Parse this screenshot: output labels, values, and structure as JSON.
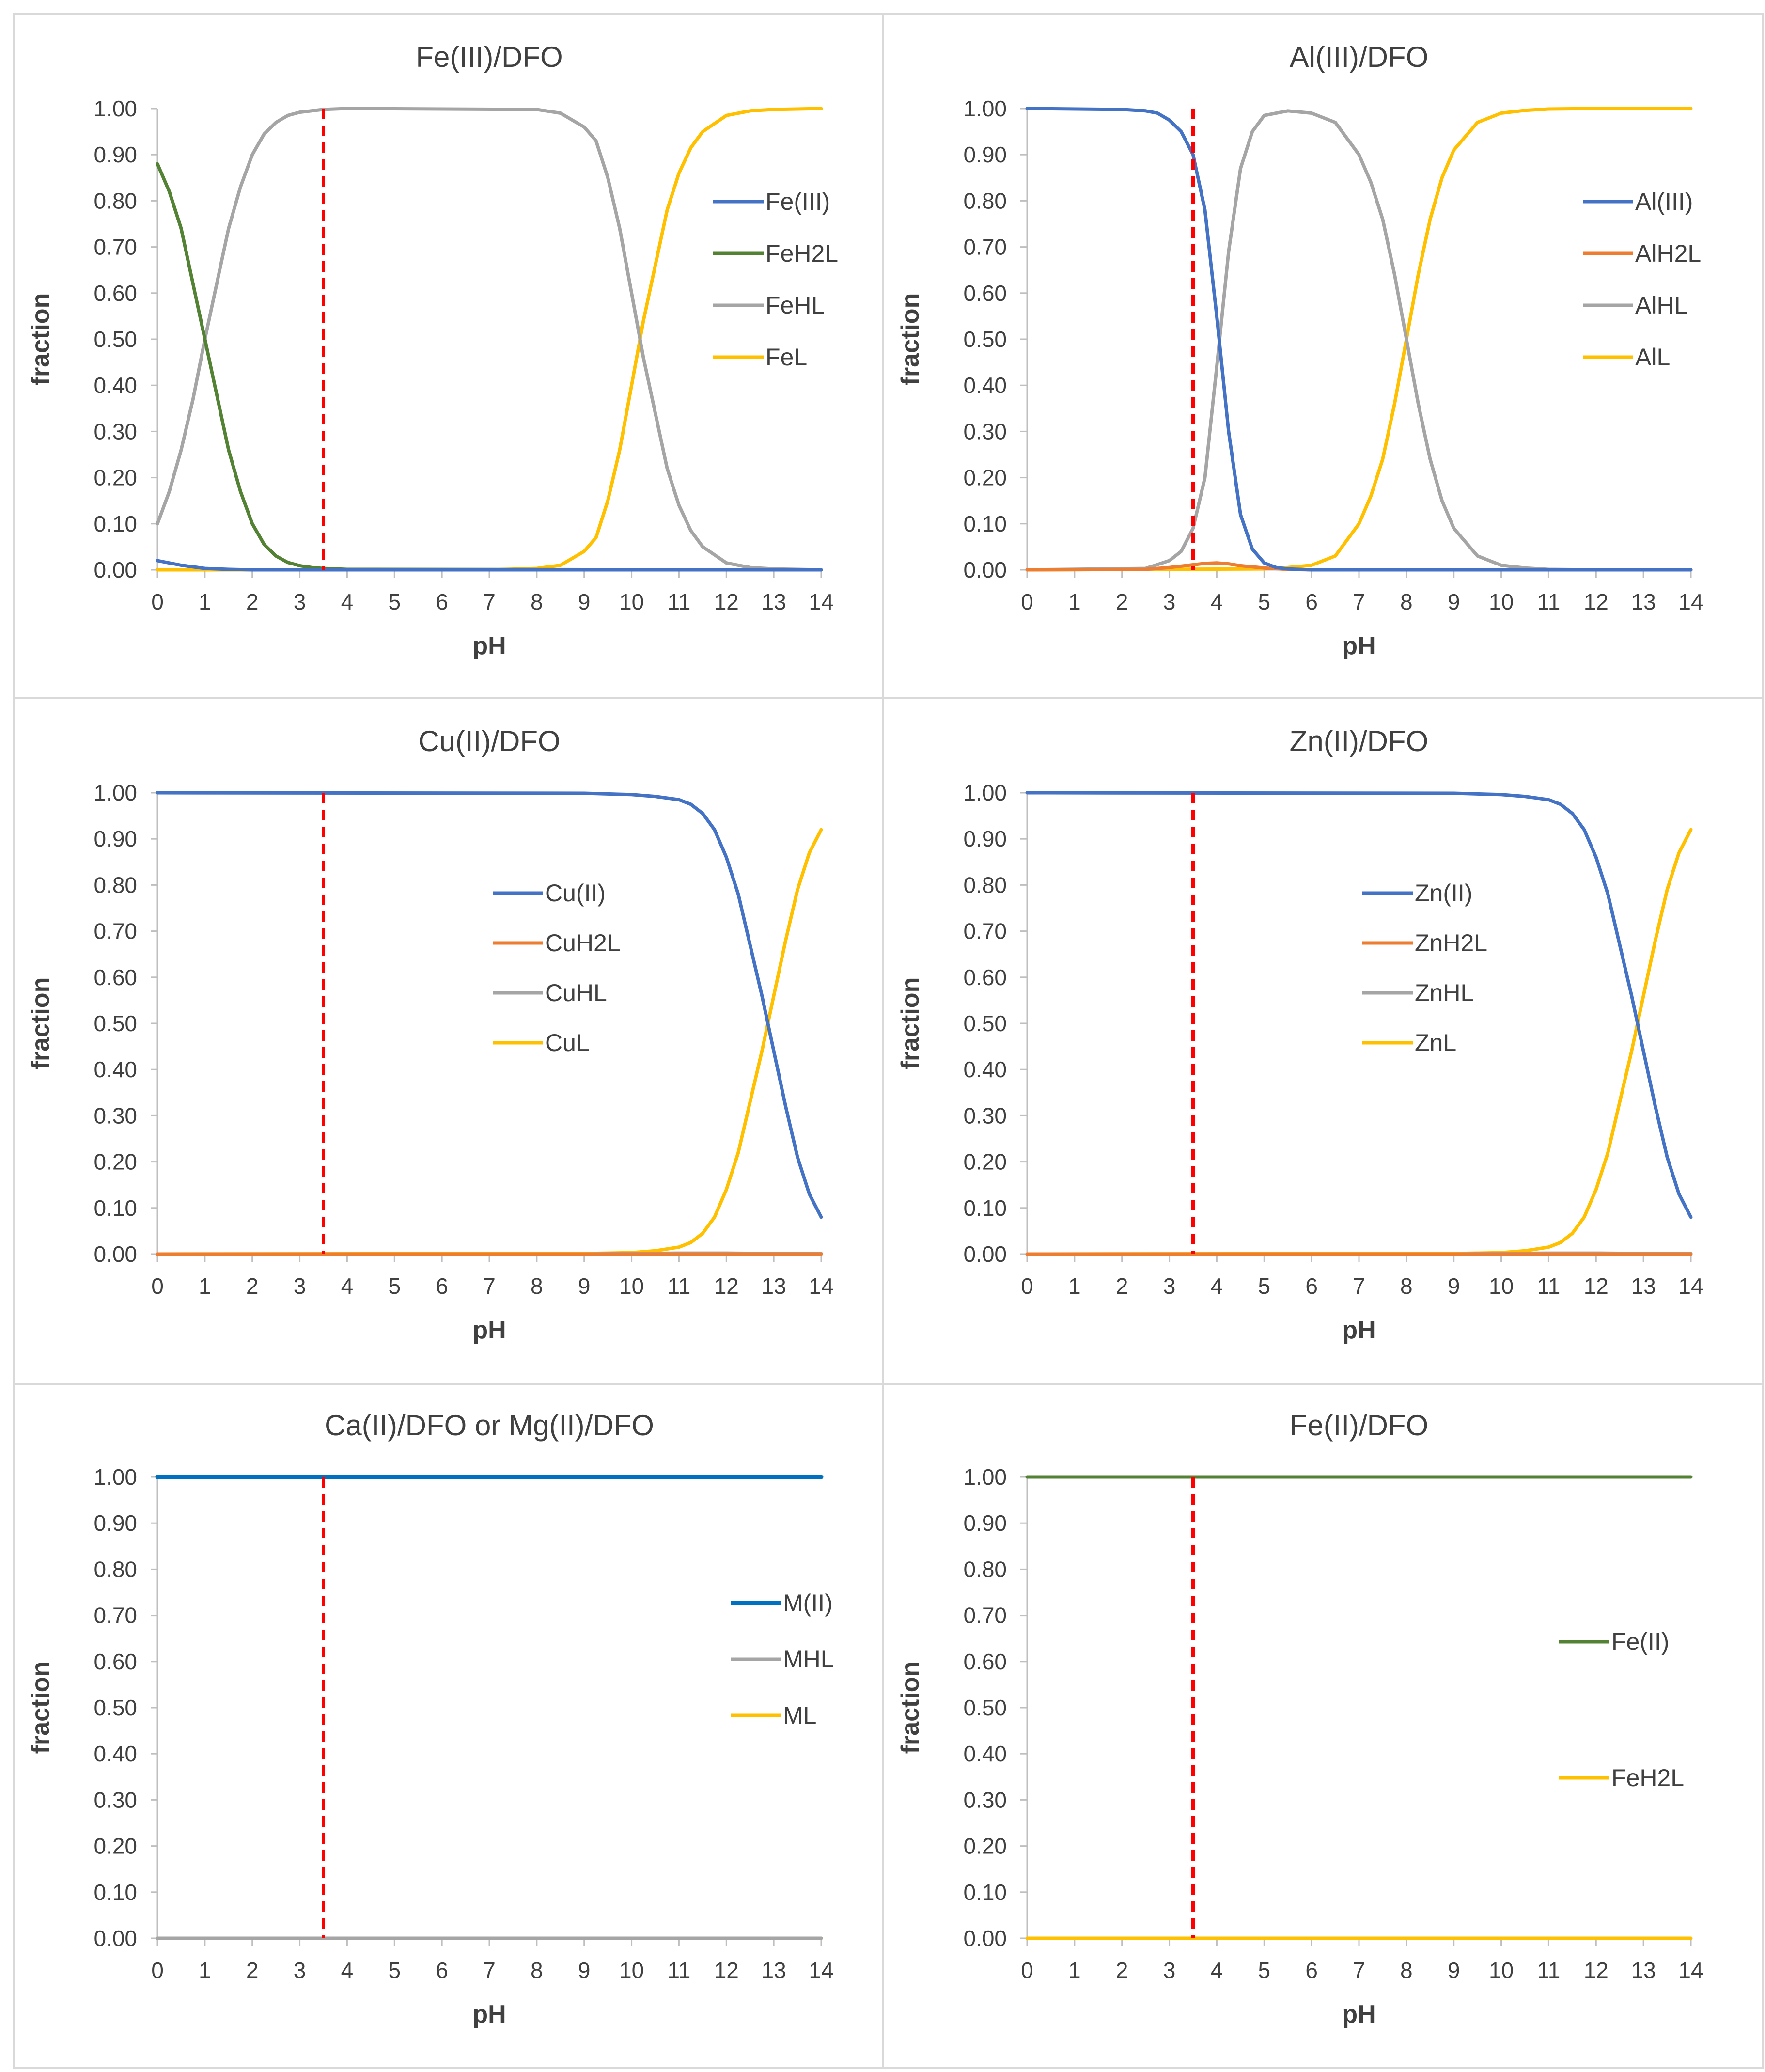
{
  "colors": {
    "blue": "#4472C4",
    "orange": "#ED7D31",
    "gray": "#A5A5A5",
    "gold": "#FFC000",
    "green": "#548235",
    "darkblue": "#0070C0",
    "red": "#FF0000"
  },
  "chart_data": [
    {
      "type": "line",
      "title": "Fe(III)/DFO",
      "xlabel": "pH",
      "ylabel": "fraction",
      "xlim": [
        0,
        14
      ],
      "ylim": [
        0,
        1
      ],
      "xticks": [
        "0",
        "1",
        "2",
        "3",
        "4",
        "5",
        "6",
        "7",
        "8",
        "9",
        "10",
        "11",
        "12",
        "13",
        "14"
      ],
      "yticks": [
        "0.00",
        "0.10",
        "0.20",
        "0.30",
        "0.40",
        "0.50",
        "0.60",
        "0.70",
        "0.80",
        "0.90",
        "1.00"
      ],
      "vline_x": 3.5,
      "legend_position": "right",
      "series": [
        {
          "name": "Fe(III)",
          "color": "blue",
          "x": [
            0,
            0.5,
            1,
            1.5,
            2,
            3,
            4,
            14
          ],
          "values": [
            0.02,
            0.01,
            0.003,
            0.001,
            0,
            0,
            0,
            0
          ]
        },
        {
          "name": "FeH2L",
          "color": "green",
          "x": [
            0,
            0.25,
            0.5,
            0.75,
            1,
            1.25,
            1.5,
            1.75,
            2,
            2.25,
            2.5,
            2.75,
            3,
            3.25,
            3.5,
            4,
            14
          ],
          "values": [
            0.88,
            0.82,
            0.74,
            0.62,
            0.5,
            0.38,
            0.26,
            0.17,
            0.1,
            0.055,
            0.03,
            0.016,
            0.009,
            0.005,
            0.003,
            0.001,
            0
          ]
        },
        {
          "name": "FeHL",
          "color": "gray",
          "x": [
            0,
            0.25,
            0.5,
            0.75,
            1,
            1.25,
            1.5,
            1.75,
            2,
            2.25,
            2.5,
            2.75,
            3,
            3.5,
            4,
            8,
            8.5,
            9,
            9.25,
            9.5,
            9.75,
            10,
            10.25,
            10.5,
            10.75,
            11,
            11.25,
            11.5,
            12,
            12.5,
            13,
            14
          ],
          "values": [
            0.1,
            0.17,
            0.26,
            0.37,
            0.5,
            0.62,
            0.74,
            0.83,
            0.9,
            0.945,
            0.97,
            0.985,
            0.992,
            0.998,
            1.0,
            0.998,
            0.99,
            0.96,
            0.93,
            0.85,
            0.74,
            0.6,
            0.46,
            0.34,
            0.22,
            0.14,
            0.085,
            0.05,
            0.015,
            0.005,
            0.002,
            0
          ]
        },
        {
          "name": "FeL",
          "color": "gold",
          "x": [
            0,
            7,
            8,
            8.5,
            9,
            9.25,
            9.5,
            9.75,
            10,
            10.25,
            10.5,
            10.75,
            11,
            11.25,
            11.5,
            12,
            12.5,
            13,
            14
          ],
          "values": [
            0,
            0,
            0.003,
            0.01,
            0.04,
            0.07,
            0.15,
            0.26,
            0.4,
            0.54,
            0.66,
            0.78,
            0.86,
            0.915,
            0.95,
            0.985,
            0.995,
            0.998,
            1.0
          ]
        }
      ]
    },
    {
      "type": "line",
      "title": "Al(III)/DFO",
      "xlabel": "pH",
      "ylabel": "fraction",
      "xlim": [
        0,
        14
      ],
      "ylim": [
        0,
        1
      ],
      "xticks": [
        "0",
        "1",
        "2",
        "3",
        "4",
        "5",
        "6",
        "7",
        "8",
        "9",
        "10",
        "11",
        "12",
        "13",
        "14"
      ],
      "yticks": [
        "0.00",
        "0.10",
        "0.20",
        "0.30",
        "0.40",
        "0.50",
        "0.60",
        "0.70",
        "0.80",
        "0.90",
        "1.00"
      ],
      "vline_x": 3.5,
      "legend_position": "right",
      "series": [
        {
          "name": "Al(III)",
          "color": "blue",
          "x": [
            0,
            2,
            2.5,
            2.75,
            3,
            3.25,
            3.5,
            3.75,
            4,
            4.25,
            4.5,
            4.75,
            5,
            5.25,
            5.5,
            6,
            14
          ],
          "values": [
            1.0,
            0.998,
            0.995,
            0.99,
            0.975,
            0.95,
            0.9,
            0.78,
            0.55,
            0.3,
            0.12,
            0.045,
            0.015,
            0.005,
            0.002,
            0,
            0
          ]
        },
        {
          "name": "AlH2L",
          "color": "orange",
          "x": [
            0,
            2.5,
            3,
            3.5,
            3.75,
            4,
            4.25,
            4.5,
            5,
            5.5,
            6,
            14
          ],
          "values": [
            0,
            0.001,
            0.005,
            0.011,
            0.014,
            0.015,
            0.013,
            0.009,
            0.004,
            0.001,
            0,
            0
          ]
        },
        {
          "name": "AlHL",
          "color": "gray",
          "x": [
            0,
            2.5,
            3,
            3.25,
            3.5,
            3.75,
            4,
            4.25,
            4.5,
            4.75,
            5,
            5.5,
            6,
            6.5,
            7,
            7.25,
            7.5,
            7.75,
            8,
            8.25,
            8.5,
            8.75,
            9,
            9.5,
            10,
            10.5,
            11,
            12,
            14
          ],
          "values": [
            0,
            0.003,
            0.02,
            0.04,
            0.09,
            0.2,
            0.44,
            0.69,
            0.87,
            0.95,
            0.985,
            0.995,
            0.99,
            0.97,
            0.9,
            0.84,
            0.76,
            0.64,
            0.5,
            0.36,
            0.24,
            0.15,
            0.09,
            0.03,
            0.01,
            0.004,
            0.001,
            0,
            0
          ]
        },
        {
          "name": "AlL",
          "color": "gold",
          "x": [
            0,
            5,
            5.5,
            6,
            6.5,
            7,
            7.25,
            7.5,
            7.75,
            8,
            8.25,
            8.5,
            8.75,
            9,
            9.5,
            10,
            10.5,
            11,
            12,
            14
          ],
          "values": [
            0,
            0.002,
            0.005,
            0.01,
            0.03,
            0.1,
            0.16,
            0.24,
            0.36,
            0.5,
            0.64,
            0.76,
            0.85,
            0.91,
            0.97,
            0.99,
            0.996,
            0.999,
            1.0,
            1.0
          ]
        }
      ]
    },
    {
      "type": "line",
      "title": "Cu(II)/DFO",
      "xlabel": "pH",
      "ylabel": "fraction",
      "xlim": [
        0,
        14
      ],
      "ylim": [
        0,
        1
      ],
      "xticks": [
        "0",
        "1",
        "2",
        "3",
        "4",
        "5",
        "6",
        "7",
        "8",
        "9",
        "10",
        "11",
        "12",
        "13",
        "14"
      ],
      "yticks": [
        "0.00",
        "0.10",
        "0.20",
        "0.30",
        "0.40",
        "0.50",
        "0.60",
        "0.70",
        "0.80",
        "0.90",
        "1.00"
      ],
      "vline_x": 3.5,
      "legend_position": "center-right",
      "series": [
        {
          "name": "Cu(II)",
          "color": "blue",
          "x": [
            0,
            9,
            10,
            10.5,
            11,
            11.25,
            11.5,
            11.75,
            12,
            12.25,
            12.5,
            12.75,
            13,
            13.25,
            13.5,
            13.75,
            14
          ],
          "values": [
            1.0,
            0.999,
            0.996,
            0.992,
            0.985,
            0.975,
            0.955,
            0.92,
            0.86,
            0.78,
            0.67,
            0.56,
            0.44,
            0.32,
            0.21,
            0.13,
            0.08
          ]
        },
        {
          "name": "CuH2L",
          "color": "orange",
          "x": [
            0,
            14
          ],
          "values": [
            0,
            0
          ]
        },
        {
          "name": "CuHL",
          "color": "gray",
          "x": [
            0,
            9,
            10,
            11,
            12,
            13,
            14
          ],
          "values": [
            0,
            0,
            0.001,
            0.002,
            0.002,
            0.001,
            0.001
          ]
        },
        {
          "name": "CuL",
          "color": "gold",
          "x": [
            0,
            9,
            10,
            10.5,
            11,
            11.25,
            11.5,
            11.75,
            12,
            12.25,
            12.5,
            12.75,
            13,
            13.25,
            13.5,
            13.75,
            14
          ],
          "values": [
            0,
            0.001,
            0.003,
            0.007,
            0.015,
            0.025,
            0.045,
            0.08,
            0.14,
            0.22,
            0.33,
            0.44,
            0.56,
            0.68,
            0.79,
            0.87,
            0.92
          ]
        }
      ]
    },
    {
      "type": "line",
      "title": "Zn(II)/DFO",
      "xlabel": "pH",
      "ylabel": "fraction",
      "xlim": [
        0,
        14
      ],
      "ylim": [
        0,
        1
      ],
      "xticks": [
        "0",
        "1",
        "2",
        "3",
        "4",
        "5",
        "6",
        "7",
        "8",
        "9",
        "10",
        "11",
        "12",
        "13",
        "14"
      ],
      "yticks": [
        "0.00",
        "0.10",
        "0.20",
        "0.30",
        "0.40",
        "0.50",
        "0.60",
        "0.70",
        "0.80",
        "0.90",
        "1.00"
      ],
      "vline_x": 3.5,
      "legend_position": "center-right",
      "series": [
        {
          "name": "Zn(II)",
          "color": "blue",
          "x": [
            0,
            9,
            10,
            10.5,
            11,
            11.25,
            11.5,
            11.75,
            12,
            12.25,
            12.5,
            12.75,
            13,
            13.25,
            13.5,
            13.75,
            14
          ],
          "values": [
            1.0,
            0.999,
            0.996,
            0.992,
            0.985,
            0.975,
            0.955,
            0.92,
            0.86,
            0.78,
            0.67,
            0.56,
            0.44,
            0.32,
            0.21,
            0.13,
            0.08
          ]
        },
        {
          "name": "ZnH2L",
          "color": "orange",
          "x": [
            0,
            14
          ],
          "values": [
            0,
            0
          ]
        },
        {
          "name": "ZnHL",
          "color": "gray",
          "x": [
            0,
            9,
            10,
            11,
            12,
            13,
            14
          ],
          "values": [
            0,
            0,
            0.001,
            0.002,
            0.002,
            0.001,
            0.001
          ]
        },
        {
          "name": "ZnL",
          "color": "gold",
          "x": [
            0,
            9,
            10,
            10.5,
            11,
            11.25,
            11.5,
            11.75,
            12,
            12.25,
            12.5,
            12.75,
            13,
            13.25,
            13.5,
            13.75,
            14
          ],
          "values": [
            0,
            0.001,
            0.003,
            0.007,
            0.015,
            0.025,
            0.045,
            0.08,
            0.14,
            0.22,
            0.33,
            0.44,
            0.56,
            0.68,
            0.79,
            0.87,
            0.92
          ]
        }
      ]
    },
    {
      "type": "line",
      "title": "Ca(II)/DFO or Mg(II)/DFO",
      "xlabel": "pH",
      "ylabel": "fraction",
      "xlim": [
        0,
        14
      ],
      "ylim": [
        0,
        1
      ],
      "xticks": [
        "0",
        "1",
        "2",
        "3",
        "4",
        "5",
        "6",
        "7",
        "8",
        "9",
        "10",
        "11",
        "12",
        "13",
        "14"
      ],
      "yticks": [
        "0.00",
        "0.10",
        "0.20",
        "0.30",
        "0.40",
        "0.50",
        "0.60",
        "0.70",
        "0.80",
        "0.90",
        "1.00"
      ],
      "vline_x": 3.5,
      "legend_position": "right",
      "series": [
        {
          "name": "M(II)",
          "color": "darkblue",
          "x": [
            0,
            14
          ],
          "values": [
            1.0,
            1.0
          ]
        },
        {
          "name": "MHL",
          "color": "gray",
          "x": [
            0,
            14
          ],
          "values": [
            0,
            0
          ]
        },
        {
          "name": "ML",
          "color": "gold",
          "x": [
            0,
            14
          ],
          "values": [
            0,
            0
          ]
        }
      ]
    },
    {
      "type": "line",
      "title": "Fe(II)/DFO",
      "xlabel": "pH",
      "ylabel": "fraction",
      "xlim": [
        0,
        14
      ],
      "ylim": [
        0,
        1
      ],
      "xticks": [
        "0",
        "1",
        "2",
        "3",
        "4",
        "5",
        "6",
        "7",
        "8",
        "9",
        "10",
        "11",
        "12",
        "13",
        "14"
      ],
      "yticks": [
        "0.00",
        "0.10",
        "0.20",
        "0.30",
        "0.40",
        "0.50",
        "0.60",
        "0.70",
        "0.80",
        "0.90",
        "1.00"
      ],
      "vline_x": 3.5,
      "legend_position": "right",
      "series": [
        {
          "name": "Fe(II)",
          "color": "green",
          "x": [
            0,
            14
          ],
          "values": [
            1.0,
            1.0
          ]
        },
        {
          "name": "FeH2L",
          "color": "gold",
          "x": [
            0,
            14
          ],
          "values": [
            0,
            0
          ]
        }
      ]
    }
  ]
}
